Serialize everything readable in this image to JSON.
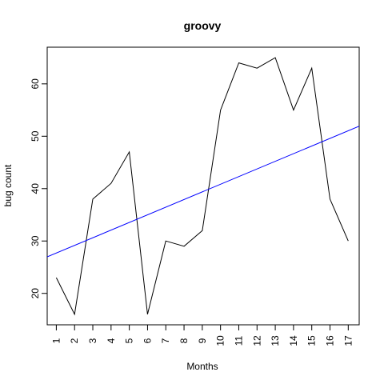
{
  "chart_data": {
    "type": "line",
    "title": "groovy",
    "xlabel": "Months",
    "ylabel": "bug count",
    "x": [
      1,
      2,
      3,
      4,
      5,
      6,
      7,
      8,
      9,
      10,
      11,
      12,
      13,
      14,
      15,
      16,
      17
    ],
    "x_tick_labels": [
      "1",
      "2",
      "3",
      "4",
      "5",
      "6",
      "7",
      "8",
      "9",
      "10",
      "11",
      "12",
      "13",
      "14",
      "15",
      "16",
      "17"
    ],
    "y_ticks": [
      20,
      30,
      40,
      50,
      60
    ],
    "series": [
      {
        "values": [
          23,
          16,
          38,
          41,
          47,
          16,
          30,
          29,
          32,
          55,
          64,
          63,
          65,
          55,
          63,
          38,
          30
        ],
        "color": "#000000"
      }
    ],
    "trend_line": {
      "intercept": 26.24,
      "slope": 1.4596,
      "color": "#0000ff"
    },
    "xlim": [
      0.5,
      17.6
    ],
    "ylim": [
      14,
      67
    ],
    "grid": false,
    "legend": "none"
  }
}
